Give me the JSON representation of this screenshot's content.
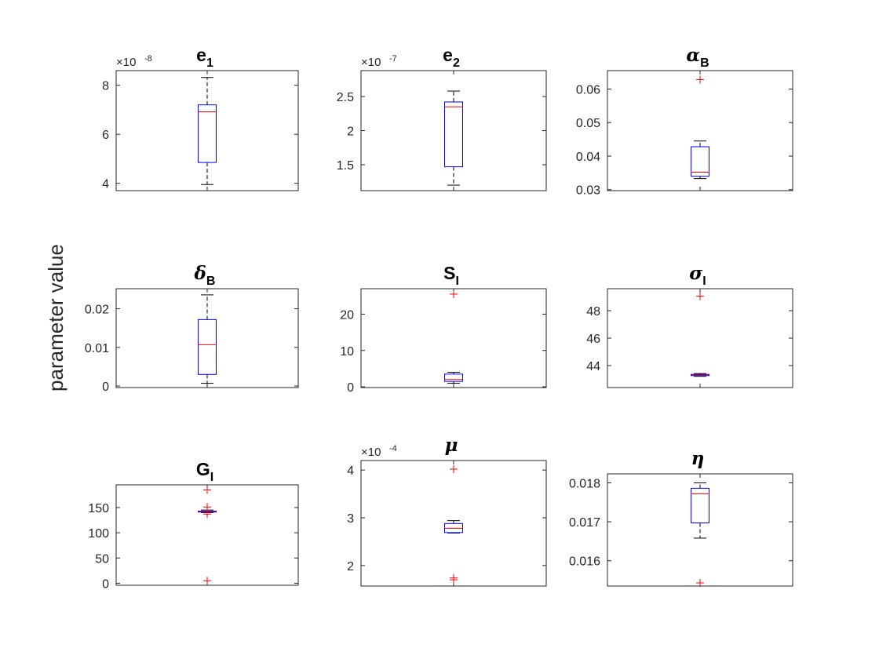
{
  "figure": {
    "ylabel": "parameter value"
  },
  "chart_data": [
    {
      "type": "box",
      "title": "e",
      "title_sub": "1",
      "title_greek": false,
      "multiplier_exp": "-8",
      "scale": 1e-08,
      "ylim": [
        3.7,
        8.6
      ],
      "yticks": [
        4,
        6,
        8
      ],
      "box": {
        "whisker_low": 3.95,
        "q1": 4.85,
        "median": 6.92,
        "q3": 7.2,
        "whisker_high": 8.32
      },
      "outliers": []
    },
    {
      "type": "box",
      "title": "e",
      "title_sub": "2",
      "title_greek": false,
      "multiplier_exp": "-7",
      "scale": 1e-07,
      "ylim": [
        1.12,
        2.88
      ],
      "yticks": [
        1.5,
        2,
        2.5
      ],
      "box": {
        "whisker_low": 1.2,
        "q1": 1.47,
        "median": 2.35,
        "q3": 2.42,
        "whisker_high": 2.58
      },
      "outliers": []
    },
    {
      "type": "box",
      "title": "α",
      "title_sub": "B",
      "title_greek": true,
      "multiplier_exp": "",
      "scale": 1,
      "ylim": [
        0.0297,
        0.0655
      ],
      "yticks": [
        0.03,
        0.04,
        0.05,
        0.06
      ],
      "box": {
        "whisker_low": 0.0333,
        "q1": 0.034,
        "median": 0.0352,
        "q3": 0.0428,
        "whisker_high": 0.0445
      },
      "outliers": [
        0.0628
      ]
    },
    {
      "type": "box",
      "title": "δ",
      "title_sub": "B",
      "title_greek": true,
      "multiplier_exp": "",
      "scale": 1,
      "ylim": [
        -0.0004,
        0.0252
      ],
      "yticks": [
        0,
        0.01,
        0.02
      ],
      "box": {
        "whisker_low": 0.0007,
        "q1": 0.003,
        "median": 0.0107,
        "q3": 0.0172,
        "whisker_high": 0.0236
      },
      "outliers": []
    },
    {
      "type": "box",
      "title": "S",
      "title_sub": "I",
      "title_greek": false,
      "multiplier_exp": "",
      "scale": 1,
      "ylim": [
        -0.2,
        27
      ],
      "yticks": [
        0,
        10,
        20
      ],
      "box": {
        "whisker_low": 1.0,
        "q1": 1.5,
        "median": 2.0,
        "q3": 3.5,
        "whisker_high": 4.0
      },
      "outliers": [
        25.5
      ]
    },
    {
      "type": "box",
      "title": "σ",
      "title_sub": "I",
      "title_greek": true,
      "multiplier_exp": "",
      "scale": 1,
      "ylim": [
        42.4,
        49.6
      ],
      "yticks": [
        44,
        46,
        48
      ],
      "box": {
        "whisker_low": 43.22,
        "q1": 43.27,
        "median": 43.32,
        "q3": 43.36,
        "whisker_high": 43.42
      },
      "outliers": [
        49.05
      ]
    },
    {
      "type": "box",
      "title": "G",
      "title_sub": "I",
      "title_greek": false,
      "multiplier_exp": "",
      "scale": 1,
      "ylim": [
        -4,
        195
      ],
      "yticks": [
        0,
        50,
        100,
        150
      ],
      "box": {
        "whisker_low": 140,
        "q1": 141,
        "median": 142,
        "q3": 143,
        "whisker_high": 145
      },
      "outliers": [
        185,
        151,
        137,
        5
      ]
    },
    {
      "type": "box",
      "title": "μ",
      "title_sub": "",
      "title_greek": true,
      "multiplier_exp": "-4",
      "scale": 0.0001,
      "ylim": [
        1.57,
        4.2
      ],
      "yticks": [
        2,
        3,
        4
      ],
      "box": {
        "whisker_low": 2.68,
        "q1": 2.69,
        "median": 2.78,
        "q3": 2.88,
        "whisker_high": 2.94
      },
      "outliers": [
        4.02,
        1.74,
        1.7
      ]
    },
    {
      "type": "box",
      "title": "η",
      "title_sub": "",
      "title_greek": true,
      "multiplier_exp": "",
      "scale": 1,
      "ylim": [
        0.01535,
        0.01823
      ],
      "yticks": [
        0.016,
        0.017,
        0.018
      ],
      "box": {
        "whisker_low": 0.01658,
        "q1": 0.01697,
        "median": 0.01772,
        "q3": 0.01786,
        "whisker_high": 0.018
      },
      "outliers": [
        0.01543
      ]
    }
  ]
}
